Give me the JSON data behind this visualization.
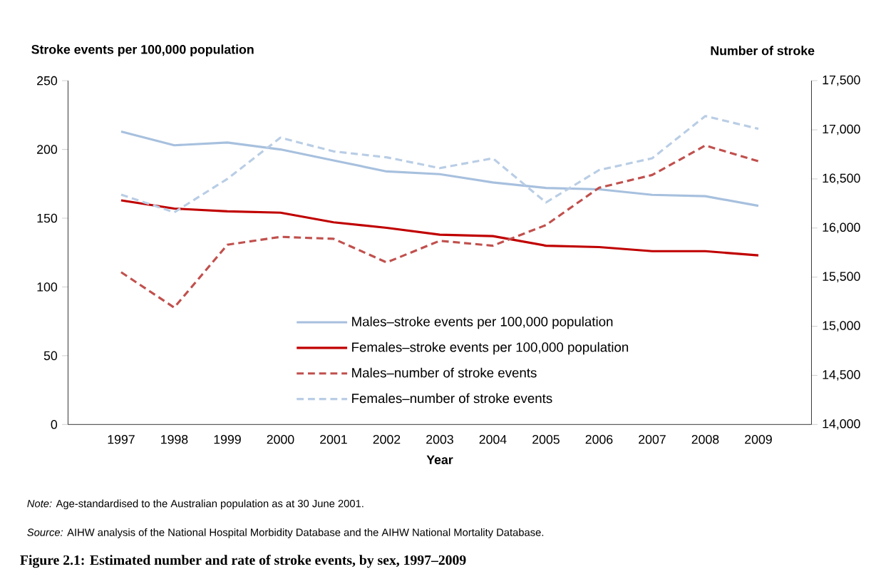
{
  "chart_data": {
    "type": "line",
    "title": "Figure 2.1: Estimated number and rate of stroke events, by sex, 1997–2009",
    "xlabel": "Year",
    "ylabel": "Stroke events per 100,000 population",
    "y2label": "Number of stroke",
    "categories": [
      "1997",
      "1998",
      "1999",
      "2000",
      "2001",
      "2002",
      "2003",
      "2004",
      "2005",
      "2006",
      "2007",
      "2008",
      "2009"
    ],
    "series": [
      {
        "name": "Males–stroke events per 100,000 population",
        "color": "#a7c0de",
        "line_style": "solid",
        "values": [
          213,
          203,
          205,
          200,
          192,
          184,
          182,
          176,
          172,
          171,
          167,
          166,
          159
        ]
      },
      {
        "name": "Females–stroke events per 100,000 population",
        "color": "#c00000",
        "line_style": "solid",
        "values": [
          163,
          157,
          155,
          154,
          147,
          143,
          138,
          137,
          130,
          129,
          126,
          126,
          123
        ]
      },
      {
        "name": "Males–number of stroke events",
        "color": "#c0504d",
        "line_style": "dashed",
        "axis": "y2",
        "values": [
          15550,
          15190,
          15830,
          15910,
          15890,
          15650,
          15870,
          15820,
          16030,
          16410,
          16540,
          16840,
          16680
        ]
      },
      {
        "name": "Females–number of stroke events",
        "color": "#b9cde5",
        "line_style": "dashed",
        "axis": "y2",
        "values": [
          16340,
          16160,
          16500,
          16920,
          16780,
          16720,
          16610,
          16710,
          16260,
          16590,
          16710,
          17140,
          17010
        ]
      }
    ],
    "ylim": [
      0,
      250
    ],
    "yticks": [
      0,
      50,
      100,
      150,
      200,
      250
    ],
    "y2lim": [
      14000,
      17500
    ],
    "y2ticks": [
      {
        "value": 14000,
        "label": "14,000"
      },
      {
        "value": 14500,
        "label": "14,500"
      },
      {
        "value": 15000,
        "label": "15,000"
      },
      {
        "value": 15500,
        "label": "15,500"
      },
      {
        "value": 16000,
        "label": "16,000"
      },
      {
        "value": 16500,
        "label": "16,500"
      },
      {
        "value": 17000,
        "label": "17,000"
      },
      {
        "value": 17500,
        "label": "17,500"
      }
    ],
    "legend": "bottom",
    "marker": "none",
    "annotations": [
      "*Note:* Age-standardised to the Australian population as at 30 June 2001.",
      "*Source:* AIHW analysis of the National Hospital Morbidity Database and the AIHW National Mortality Database."
    ]
  }
}
